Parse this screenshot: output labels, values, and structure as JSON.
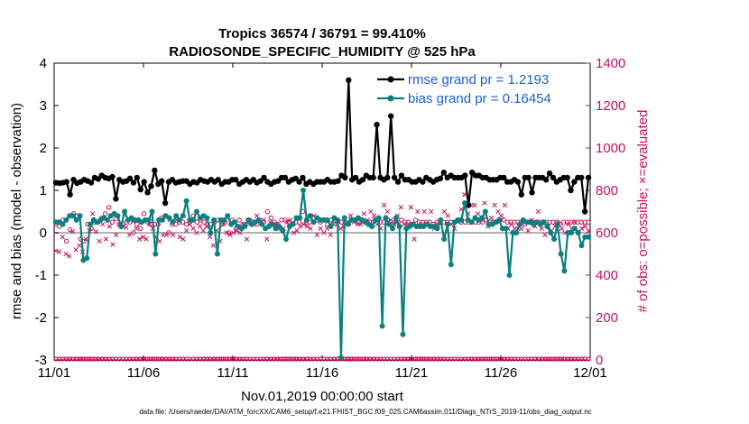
{
  "chart_data": {
    "type": "line",
    "title": "Tropics 36574 / 36791 = 99.410%",
    "subtitle": "RADIOSONDE_SPECIFIC_HUMIDITY @ 525 hPa",
    "xlabel": "Nov.01,2019 00:00:00 start",
    "ylabel": "rmse and bias (model - observation)",
    "ylabel_right": "# of obs: o=possible; ×=evaluated",
    "xlim": [
      0,
      30
    ],
    "ylim": [
      -3,
      4
    ],
    "ylim_right": [
      0,
      1400
    ],
    "x_tick_labels": [
      "11/01",
      "11/06",
      "11/11",
      "11/16",
      "11/21",
      "11/26",
      "12/01"
    ],
    "x_tick_values": [
      0,
      5,
      10,
      15,
      20,
      25,
      30
    ],
    "y_ticks": [
      "-3",
      "-2",
      "-1",
      "0",
      "1",
      "2",
      "3",
      "4"
    ],
    "y_ticks_right": [
      "0",
      "200",
      "400",
      "600",
      "800",
      "1000",
      "1200",
      "1400"
    ],
    "legend": [
      {
        "label": "rmse grand pr = 1.2193",
        "color": "#000000"
      },
      {
        "label": "bias grand pr = 0.16454",
        "color": "#0a8080"
      }
    ],
    "series": [
      {
        "name": "rmse",
        "color": "#000000",
        "values": [
          1.18,
          1.17,
          1.18,
          1.2,
          0.9,
          1.25,
          1.17,
          1.2,
          1.25,
          1.22,
          1.18,
          1.3,
          1.27,
          1.35,
          1.3,
          1.28,
          1.32,
          0.8,
          1.25,
          1.2,
          1.22,
          1.28,
          1.18,
          1.3,
          1.02,
          1.2,
          0.95,
          1.1,
          1.47,
          1.15,
          1.22,
          0.7,
          1.2,
          1.25,
          1.18,
          1.2,
          1.22,
          1.22,
          1.15,
          1.2,
          1.18,
          1.25,
          1.22,
          1.2,
          1.25,
          1.2,
          1.25,
          1.15,
          1.2,
          1.2,
          1.25,
          1.25,
          1.15,
          1.2,
          1.25,
          1.2,
          1.25,
          1.18,
          1.22,
          1.3,
          1.2,
          1.15,
          1.2,
          1.22,
          1.3,
          1.3,
          1.2,
          1.25,
          1.28,
          1.2,
          1.3,
          1.15,
          1.2,
          1.15,
          1.2,
          1.2,
          1.2,
          1.25,
          1.2,
          1.2,
          1.22,
          1.35,
          1.3,
          3.6,
          1.25,
          1.3,
          1.2,
          1.25,
          1.35,
          1.3,
          1.3,
          2.55,
          1.3,
          1.25,
          1.3,
          2.75,
          1.3,
          1.2,
          1.35,
          1.25,
          1.25,
          1.2,
          1.2,
          1.25,
          1.2,
          1.3,
          1.25,
          1.2,
          1.25,
          1.28,
          1.42,
          1.3,
          1.35,
          1.3,
          1.3,
          1.3,
          1.35,
          0.65,
          1.42,
          1.35,
          1.35,
          1.3,
          1.3,
          1.25,
          1.25,
          1.25,
          1.3,
          1.3,
          1.2,
          1.2,
          1.25,
          1.2,
          0.9,
          1.3,
          1.3,
          0.95,
          1.3,
          1.3,
          1.3,
          1.25,
          1.4,
          1.3,
          1.2,
          1.25,
          1.3,
          1.3,
          1.0,
          1.2,
          1.3,
          1.3,
          0.5,
          1.3
        ]
      },
      {
        "name": "bias",
        "color": "#0a8080",
        "values": [
          0.25,
          0.25,
          0.2,
          0.3,
          0.4,
          0.4,
          0.3,
          0.4,
          -0.65,
          -0.6,
          0.2,
          0.3,
          0.25,
          0.3,
          0.35,
          0.3,
          0.4,
          0.45,
          0.4,
          0.15,
          0.5,
          0.3,
          0.35,
          0.3,
          0.3,
          0.25,
          0.3,
          0.3,
          0.5,
          -0.5,
          0.3,
          0.3,
          0.4,
          0.35,
          0.25,
          0.4,
          0.3,
          0.4,
          0.75,
          0.3,
          0.3,
          0.5,
          0.35,
          0.4,
          0.35,
          0.0,
          0.3,
          -0.5,
          0.3,
          0.3,
          0.4,
          0.2,
          0.25,
          0.15,
          0.1,
          0.15,
          0.3,
          0.2,
          0.25,
          0.3,
          0.2,
          0.1,
          0.15,
          0.2,
          0.1,
          0.15,
          0.05,
          -0.15,
          0.15,
          0.2,
          0.35,
          0.35,
          1.0,
          0.3,
          0.4,
          0.25,
          0.35,
          0.3,
          0.3,
          0.3,
          0.15,
          0.35,
          0.3,
          -2.95,
          0.35,
          0.2,
          0.3,
          0.3,
          0.35,
          0.3,
          0.25,
          0.2,
          0.15,
          0.3,
          0.35,
          -2.2,
          0.35,
          0.2,
          0.1,
          0.35,
          0.15,
          -2.4,
          0.1,
          0.15,
          0.2,
          0.15,
          0.15,
          0.15,
          0.2,
          0.15,
          0.15,
          0.1,
          0.3,
          -0.15,
          0.2,
          -0.75,
          0.25,
          0.3,
          0.3,
          0.7,
          0.3,
          0.25,
          0.35,
          0.3,
          0.35,
          0.5,
          0.2,
          0.2,
          0.25,
          0.3,
          0.1,
          0.1,
          -1.0,
          0.0,
          0.0,
          0.2,
          0.3,
          0.25,
          0.25,
          0.2,
          0.25,
          0.2,
          0.25,
          0.15,
          0.0,
          -0.15,
          0.2,
          -0.5,
          -0.9,
          0.0,
          0.0,
          0.1,
          0.0,
          -0.3,
          -0.1,
          -0.1
        ]
      },
      {
        "name": "obs possible (right axis)",
        "color": "#c8105a",
        "marker": "circle",
        "values": [
          640,
          630,
          660,
          560,
          615,
          690,
          680,
          570,
          560,
          640,
          620,
          650,
          650,
          670,
          690,
          720,
          650,
          665,
          640,
          640,
          650,
          650,
          600,
          640,
          620,
          690,
          650,
          640,
          640,
          640,
          670,
          680,
          600,
          640,
          640,
          650,
          650,
          640,
          650,
          680,
          650,
          660,
          650,
          640,
          640,
          650,
          660,
          640,
          650,
          600,
          660,
          620,
          660,
          640,
          640,
          660,
          650,
          640,
          650,
          650,
          700,
          670,
          650,
          640,
          660,
          660,
          650,
          640,
          650,
          650,
          700,
          650,
          650,
          650,
          660,
          650,
          660,
          640,
          660,
          660,
          650,
          650,
          650,
          640,
          660,
          660,
          650,
          660,
          650,
          650,
          650,
          660,
          650,
          650,
          660,
          640,
          650,
          650,
          660,
          650,
          650,
          640,
          660,
          650,
          650,
          650,
          650,
          640,
          650,
          650,
          650,
          650,
          650,
          650,
          660,
          650,
          650,
          650,
          650,
          650,
          650,
          650,
          660,
          650,
          650,
          650,
          660,
          660,
          650,
          650,
          650,
          650,
          650,
          640,
          650,
          650,
          650,
          650,
          650,
          650,
          650,
          650,
          650,
          640,
          650,
          650,
          650,
          650,
          650,
          650,
          650,
          650
        ]
      },
      {
        "name": "obs evaluated (right axis)",
        "color": "#c8105a",
        "marker": "x",
        "values": [
          515,
          510,
          580,
          500,
          490,
          605,
          520,
          540,
          510,
          570,
          610,
          690,
          605,
          560,
          640,
          570,
          630,
          545,
          590,
          640,
          630,
          625,
          590,
          655,
          620,
          570,
          580,
          570,
          640,
          620,
          580,
          560,
          590,
          590,
          660,
          590,
          660,
          580,
          570,
          610,
          640,
          620,
          600,
          630,
          610,
          630,
          580,
          540,
          610,
          560,
          640,
          600,
          590,
          600,
          610,
          600,
          640,
          570,
          650,
          640,
          680,
          660,
          660,
          570,
          650,
          640,
          640,
          620,
          620,
          650,
          660,
          600,
          610,
          630,
          640,
          630,
          620,
          680,
          590,
          620,
          600,
          620,
          590,
          640,
          640,
          620,
          630,
          650,
          680,
          650,
          640,
          640,
          690,
          660,
          700,
          680,
          640,
          620,
          730,
          700,
          660,
          640,
          680,
          720,
          640,
          640,
          720,
          570,
          700,
          640,
          700,
          640,
          700,
          620,
          640,
          650,
          700,
          680,
          640,
          620,
          650,
          710,
          780,
          690,
          730,
          730,
          690,
          660,
          740,
          630,
          670,
          730,
          700,
          680,
          730,
          620,
          640,
          620,
          620,
          620,
          650,
          610,
          660,
          630,
          700,
          620,
          590,
          630,
          610,
          630,
          650,
          620,
          600,
          640,
          620,
          650,
          600,
          620,
          630,
          610
        ]
      }
    ]
  },
  "footnote": "data file: /Users/raeder/DAI/ATM_forcXX/CAM6_setup/f.e21.FHIST_BGC.f09_025.CAM6assim.011/Diags_NTrS_2019-11/obs_diag_output.nc"
}
